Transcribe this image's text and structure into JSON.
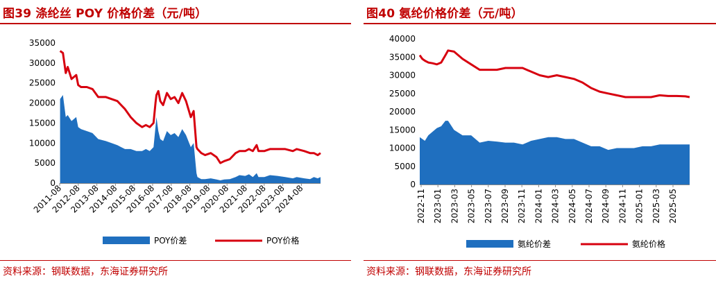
{
  "colors": {
    "area": "#1f6fbf",
    "line": "#d7000f",
    "accent": "#c00000"
  },
  "left": {
    "title": "图39  涤纶丝 POY 价格价差（元/吨）",
    "source": "资料来源：钢联数据，东海证券研究所",
    "legend": {
      "area": "POY价差",
      "line": "POY价格"
    }
  },
  "right": {
    "title": "图40  氨纶价格价差（元/吨）",
    "source": "资料来源：钢联数据，东海证券研究所",
    "legend": {
      "area": "氨纶价差",
      "line": "氨纶价格"
    }
  },
  "chart_data": [
    {
      "type": "area+line",
      "ylim": [
        0,
        35000
      ],
      "yticks": [
        "0",
        "5000",
        "10000",
        "15000",
        "20000",
        "25000",
        "30000",
        "35000"
      ],
      "x": [
        2011.6,
        2011.75,
        2011.9,
        2012.0,
        2012.2,
        2012.45,
        2012.55,
        2012.7,
        2013.0,
        2013.3,
        2013.6,
        2014.0,
        2014.3,
        2014.6,
        2014.8,
        2015.0,
        2015.3,
        2015.6,
        2015.9,
        2016.1,
        2016.3,
        2016.5,
        2016.6,
        2016.65,
        2016.75,
        2016.85,
        2017.0,
        2017.2,
        2017.4,
        2017.6,
        2017.8,
        2018.0,
        2018.2,
        2018.45,
        2018.6,
        2018.75,
        2018.8,
        2019.0,
        2019.2,
        2019.5,
        2019.8,
        2020.0,
        2020.2,
        2020.5,
        2020.8,
        2021.0,
        2021.3,
        2021.5,
        2021.7,
        2021.9,
        2022.0,
        2022.3,
        2022.6,
        2023.0,
        2023.4,
        2023.8,
        2024.0,
        2024.4,
        2024.7,
        2024.9,
        2025.1,
        2025.25
      ],
      "series": [
        {
          "name": "POY价格",
          "kind": "line",
          "values": [
            33000,
            32500,
            27500,
            29000,
            26000,
            27000,
            24500,
            24000,
            24000,
            23500,
            21500,
            21500,
            21000,
            20500,
            19500,
            18500,
            16500,
            15000,
            14000,
            14500,
            14000,
            15000,
            20000,
            22000,
            23000,
            20500,
            19500,
            22500,
            21000,
            21500,
            20000,
            22500,
            20500,
            16500,
            18000,
            9000,
            8500,
            7500,
            7000,
            7500,
            6500,
            5000,
            5500,
            6000,
            7500,
            8000,
            8000,
            8500,
            8000,
            9500,
            8000,
            8000,
            8500,
            8500,
            8500,
            8000,
            8500,
            8000,
            7500,
            7500,
            7000,
            7500
          ]
        },
        {
          "name": "POY价差",
          "kind": "area",
          "values": [
            21000,
            22000,
            16500,
            17000,
            15500,
            16500,
            14000,
            13500,
            13000,
            12500,
            11000,
            10500,
            10000,
            9500,
            9000,
            8500,
            8500,
            8000,
            8000,
            8500,
            8000,
            9000,
            14000,
            16500,
            13000,
            11000,
            10500,
            13000,
            12000,
            12500,
            11500,
            13500,
            12000,
            9000,
            10000,
            2500,
            1500,
            1000,
            1000,
            1200,
            900,
            700,
            900,
            1000,
            1500,
            2000,
            1800,
            2200,
            1500,
            2500,
            1500,
            1500,
            2000,
            1800,
            1500,
            1200,
            1500,
            1200,
            1000,
            1500,
            1200,
            1500
          ]
        }
      ],
      "x_tick_labels": [
        "2011-08",
        "2012-08",
        "2013-08",
        "2014-08",
        "2015-08",
        "2016-08",
        "2017-08",
        "2018-08",
        "2019-08",
        "2020-08",
        "2021-08",
        "2022-08",
        "2023-08",
        "2024-08"
      ]
    },
    {
      "type": "area+line",
      "ylim": [
        0,
        40000
      ],
      "yticks": [
        "0",
        "5000",
        "10000",
        "15000",
        "20000",
        "25000",
        "30000",
        "35000",
        "40000"
      ],
      "x": [
        0,
        0.3,
        0.6,
        1,
        1.5,
        2,
        2.5,
        3,
        3.3,
        4,
        5,
        6,
        7,
        8,
        9,
        10,
        11,
        12,
        13,
        14,
        15,
        16,
        17,
        18,
        19,
        20,
        21,
        22,
        23,
        24,
        25,
        26,
        27,
        28,
        29,
        30,
        31,
        31.5
      ],
      "series": [
        {
          "name": "氨纶价格",
          "kind": "line",
          "values": [
            35500,
            34500,
            34000,
            33500,
            33300,
            33000,
            33500,
            35500,
            36800,
            36500,
            34500,
            33000,
            31500,
            31500,
            31500,
            32000,
            32000,
            32000,
            31000,
            30000,
            29500,
            30000,
            29500,
            29000,
            28000,
            26500,
            25500,
            25000,
            24500,
            24000,
            24000,
            24000,
            24000,
            24500,
            24300,
            24300,
            24200,
            24000
          ]
        },
        {
          "name": "氨纶价差",
          "kind": "area",
          "values": [
            13000,
            12500,
            12000,
            13500,
            14500,
            15500,
            16000,
            17500,
            17500,
            15000,
            13500,
            13500,
            11500,
            12000,
            11800,
            11500,
            11500,
            11000,
            12000,
            12500,
            13000,
            13000,
            12500,
            12500,
            11500,
            10500,
            10500,
            9500,
            10000,
            10000,
            10000,
            10500,
            10500,
            11000,
            11000,
            11000,
            11000,
            11000
          ]
        }
      ],
      "x_tick_labels": [
        "2022-11",
        "2023-01",
        "2023-03",
        "2023-05",
        "2023-07",
        "2023-09",
        "2023-11",
        "2024-01",
        "2024-03",
        "2024-05",
        "2024-07",
        "2024-09",
        "2024-11",
        "2025-01",
        "2025-03",
        "2025-05"
      ]
    }
  ]
}
